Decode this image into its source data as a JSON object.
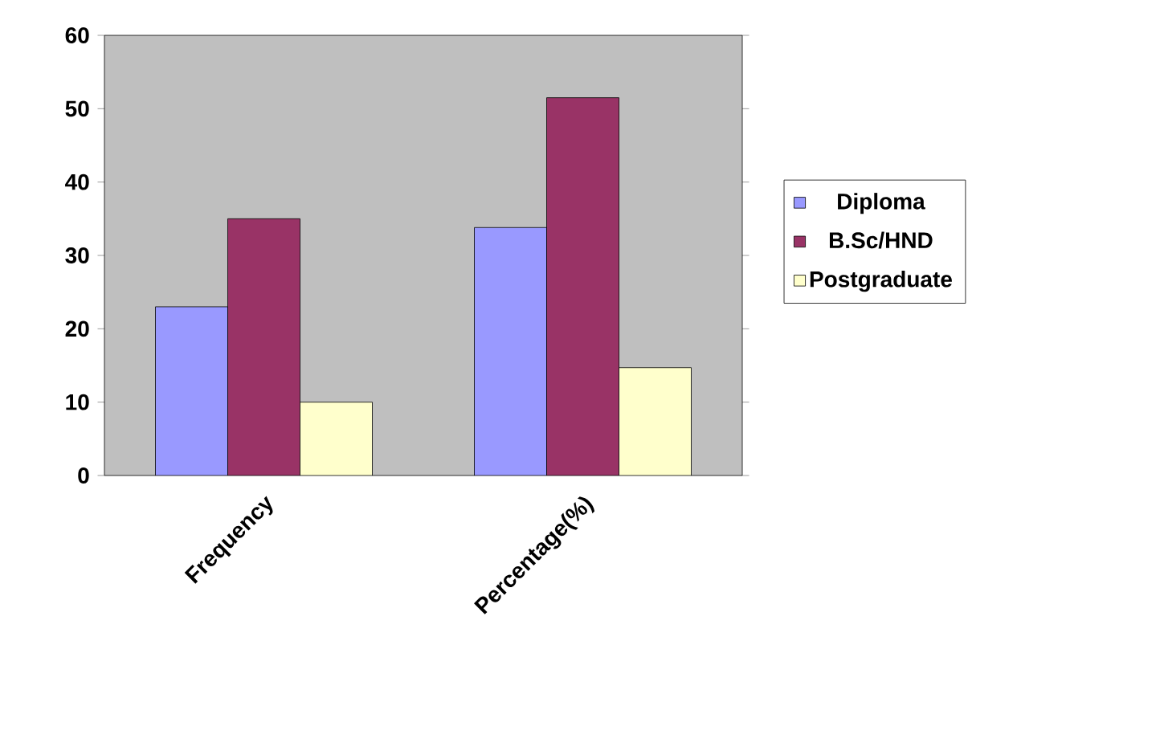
{
  "chart_data": {
    "type": "bar",
    "categories": [
      "Frequency",
      "Percentage(%)"
    ],
    "series": [
      {
        "name": "Diploma",
        "color": "#9999ff",
        "values": [
          23,
          33.8
        ]
      },
      {
        "name": "B.Sc/HND",
        "color": "#993366",
        "values": [
          35,
          51.5
        ]
      },
      {
        "name": "Postgraduate",
        "color": "#ffffcc",
        "values": [
          10,
          14.7
        ]
      }
    ],
    "ylim": [
      0,
      60
    ],
    "yticks": [
      0,
      10,
      20,
      30,
      40,
      50,
      60
    ],
    "grid": false,
    "legend": "right"
  }
}
